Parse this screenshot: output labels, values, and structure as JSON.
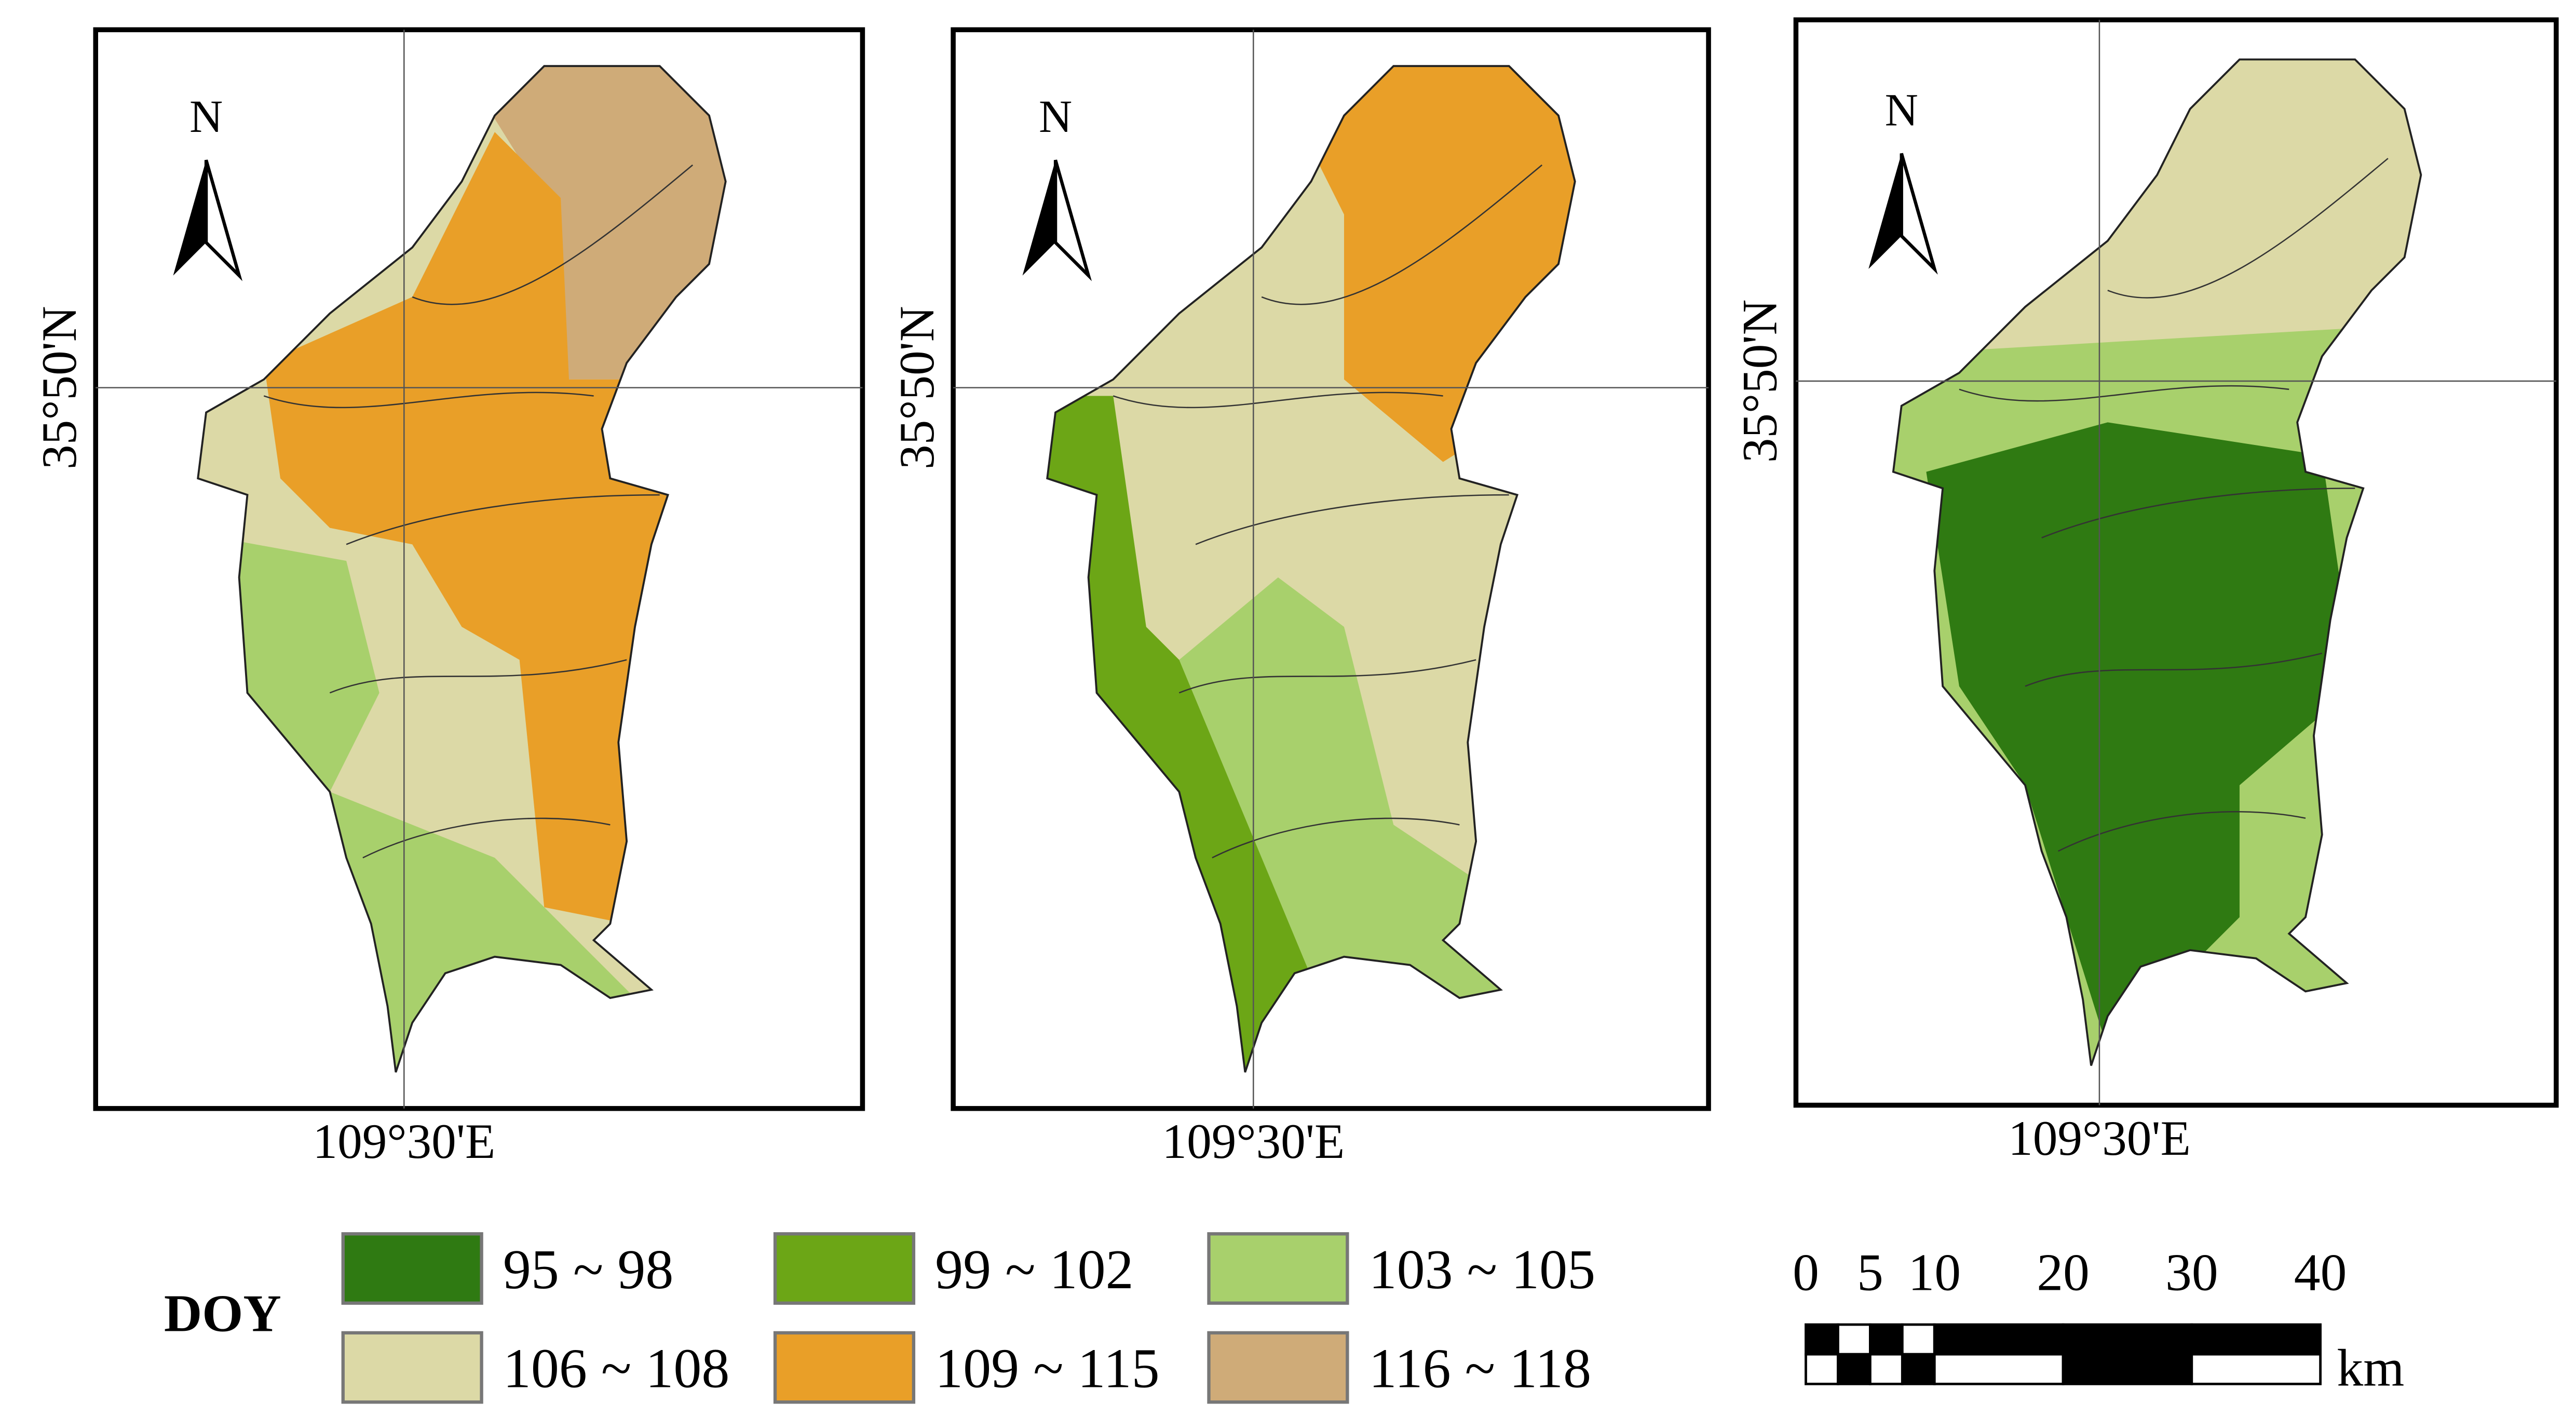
{
  "panels": [
    {
      "north_label": "N",
      "latitude_label": "35°50'N",
      "longitude_label": "109°30'E"
    },
    {
      "north_label": "N",
      "latitude_label": "35°50'N",
      "longitude_label": "109°30'E"
    },
    {
      "north_label": "N",
      "latitude_label": "35°50'N",
      "longitude_label": "109°30'E"
    }
  ],
  "legend": {
    "title": "DOY",
    "items": [
      {
        "label": "95 ~  98",
        "color": "#2f7a12"
      },
      {
        "label": "99 ~ 102",
        "color": "#6ca616"
      },
      {
        "label": "103 ~ 105",
        "color": "#a8d06c"
      },
      {
        "label": "106 ~ 108",
        "color": "#dcd9a6"
      },
      {
        "label": "109 ~ 115",
        "color": "#e99f28"
      },
      {
        "label": "116 ~ 118",
        "color": "#cfab78"
      }
    ]
  },
  "scale_bar": {
    "ticks": [
      0,
      5,
      10,
      20,
      30,
      40
    ],
    "unit": "km"
  }
}
